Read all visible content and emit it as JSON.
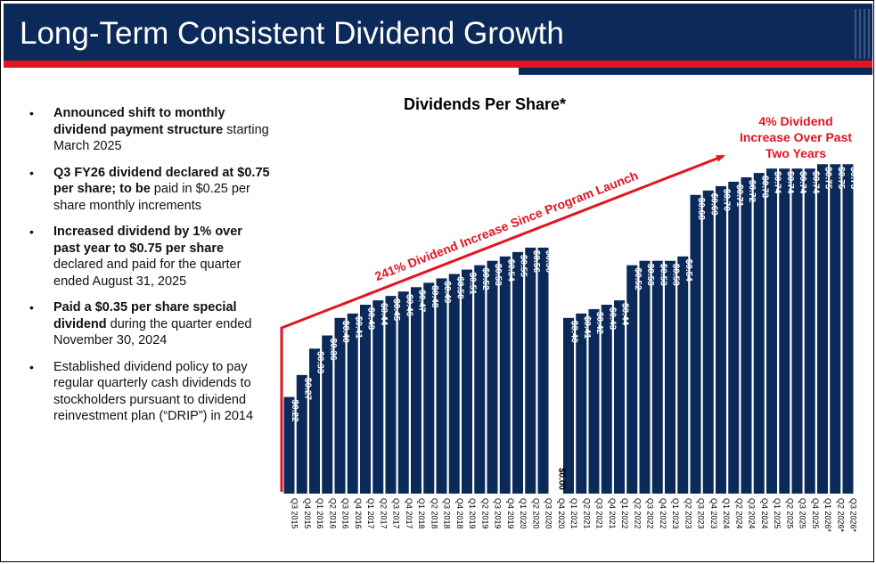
{
  "header": {
    "title": "Long-Term Consistent Dividend Growth"
  },
  "colors": {
    "navy": "#0b2a59",
    "red": "#e2141f"
  },
  "bullets": [
    {
      "bold": "Announced shift to monthly dividend payment structure",
      "normal": " starting March 2025"
    },
    {
      "bold": "Q3 FY26 dividend declared at $0.75 per share; to be",
      "normal": " paid in $0.25 per share monthly increments"
    },
    {
      "bold": "Increased dividend by 1% over past year to $0.75 per share",
      "normal": " declared and paid for the quarter ended August 31, 2025"
    },
    {
      "bold": "Paid a $0.35 per share special dividend",
      "normal": " during the quarter ended November 30, 2024"
    },
    {
      "bold": "",
      "normal": "Established dividend policy to pay regular quarterly cash dividends to stockholders pursuant to dividend reinvestment plan (“DRIP”) in 2014"
    }
  ],
  "chart_data": {
    "type": "bar",
    "title": "Dividends Per Share*",
    "xlabel": "",
    "ylabel": "",
    "ylim": [
      0,
      0.8
    ],
    "categories": [
      "Q3 2015",
      "Q4 2015",
      "Q1 2016",
      "Q2 2016",
      "Q3 2016",
      "Q4 2016",
      "Q1 2017",
      "Q2 2017",
      "Q3 2017",
      "Q4 2017",
      "Q1 2018",
      "Q2 2018",
      "Q3 2018",
      "Q4 2018",
      "Q1 2019",
      "Q2 2019",
      "Q3 2019",
      "Q4 2019",
      "Q1 2020",
      "Q2 2020",
      "Q3 2020",
      "Q4 2020",
      "Q1 2021",
      "Q2 2021",
      "Q3 2021",
      "Q4 2021",
      "Q1 2022",
      "Q2 2022",
      "Q3 2022",
      "Q4 2022",
      "Q1 2023",
      "Q2 2023",
      "Q3 2023",
      "Q4 2023",
      "Q1 2024",
      "Q2 2024",
      "Q3 2024",
      "Q4 2024",
      "Q1 2025",
      "Q2 2025",
      "Q3 2025",
      "Q4 2025",
      "Q1 2026*",
      "Q2 2026*",
      "Q3 2026*"
    ],
    "values": [
      0.22,
      0.27,
      0.33,
      0.36,
      0.4,
      0.41,
      0.43,
      0.44,
      0.45,
      0.46,
      0.47,
      0.48,
      0.49,
      0.5,
      0.51,
      0.52,
      0.53,
      0.54,
      0.55,
      0.56,
      0.56,
      0.0,
      0.4,
      0.41,
      0.42,
      0.43,
      0.44,
      0.52,
      0.53,
      0.53,
      0.53,
      0.54,
      0.68,
      0.69,
      0.7,
      0.71,
      0.72,
      0.73,
      0.74,
      0.74,
      0.74,
      0.74,
      0.75,
      0.75,
      0.75
    ],
    "labels": [
      "$0.22",
      "$0.27",
      "$0.33",
      "$0.36",
      "$0.40",
      "$0.41",
      "$0.43",
      "$0.44",
      "$0.45",
      "$0.46",
      "$0.47",
      "$0.48",
      "$0.49",
      "$0.50",
      "$0.51",
      "$0.52",
      "$0.53",
      "$0.54",
      "$0.55",
      "$0.56",
      "$0.56",
      "$0.00",
      "$0.40",
      "$0.41",
      "$0.42",
      "$0.43",
      "$0.44",
      "$0.52",
      "$0.53",
      "$0.53",
      "$0.53",
      "$0.54",
      "$0.68",
      "$0.69",
      "$0.70",
      "$0.71",
      "$0.72",
      "$0.73",
      "$0.74",
      "$0.74",
      "$0.74",
      "$0.74",
      "$0.75",
      "$0.75",
      "$0.75"
    ],
    "annotations": {
      "arrow_text": "241% Dividend Increase Since Program Launch",
      "top_right": [
        "4% Dividend",
        "Increase Over Past",
        "Two Years"
      ]
    }
  }
}
